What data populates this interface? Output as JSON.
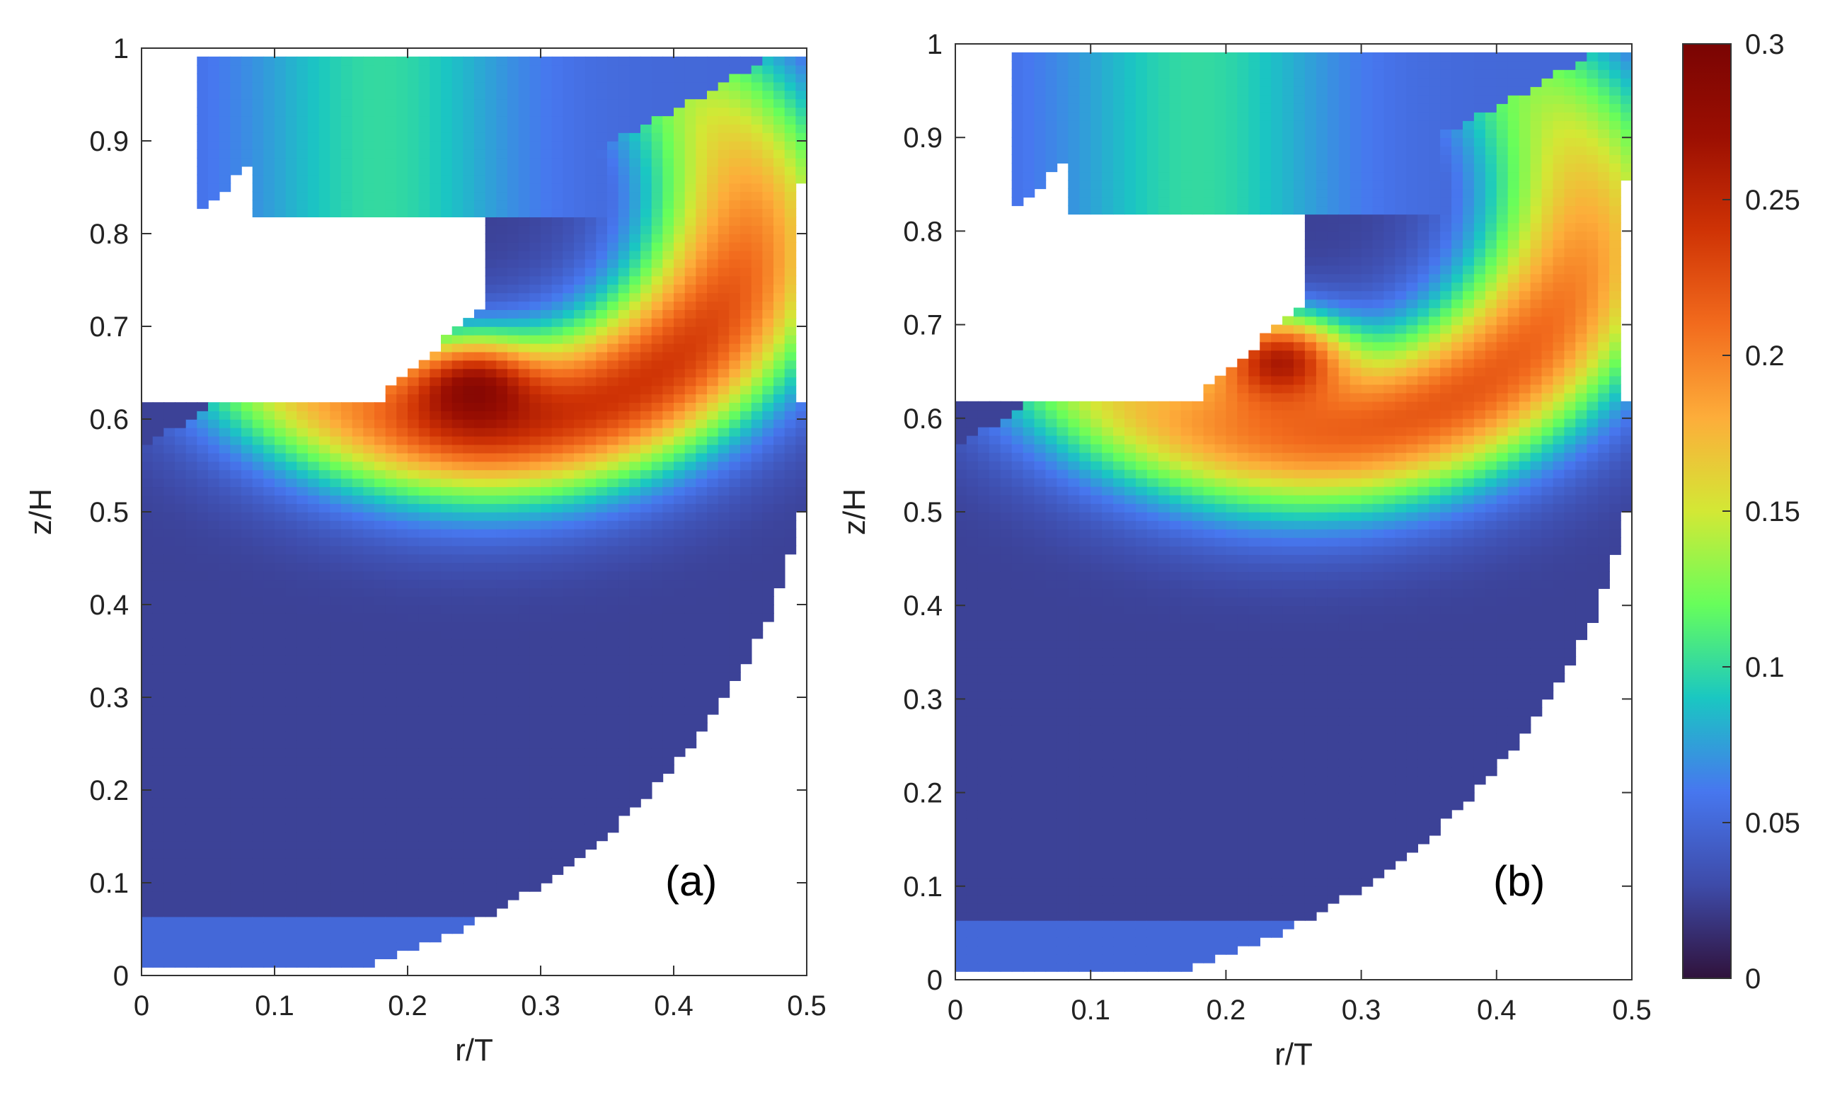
{
  "chart_data": [
    {
      "type": "heatmap",
      "panel_label": "(a)",
      "xlabel": "r/T",
      "ylabel": "z/H",
      "xlim": [
        0,
        0.5
      ],
      "ylim": [
        0,
        1
      ],
      "x_ticks": [
        "0",
        "0.1",
        "0.2",
        "0.3",
        "0.4",
        "0.5"
      ],
      "y_ticks": [
        "0",
        "0.1",
        "0.2",
        "0.3",
        "0.4",
        "0.5",
        "0.6",
        "0.7",
        "0.8",
        "0.9",
        "1"
      ],
      "hotspot": {
        "r": 0.25,
        "z": 0.63,
        "value": 0.3
      },
      "jet_band": {
        "center": [
          0.25,
          0.82
        ],
        "radius": 0.205,
        "peak_value": 0.24
      },
      "background_value": 0.025
    },
    {
      "type": "heatmap",
      "panel_label": "(b)",
      "xlabel": "r/T",
      "ylabel": "z/H",
      "xlim": [
        0,
        0.5
      ],
      "ylim": [
        0,
        1
      ],
      "x_ticks": [
        "0",
        "0.1",
        "0.2",
        "0.3",
        "0.4",
        "0.5"
      ],
      "y_ticks": [
        "0",
        "0.1",
        "0.2",
        "0.3",
        "0.4",
        "0.5",
        "0.6",
        "0.7",
        "0.8",
        "0.9",
        "1"
      ],
      "hotspot": {
        "r": 0.24,
        "z": 0.66,
        "value": 0.28
      },
      "jet_band": {
        "center": [
          0.25,
          0.82
        ],
        "radius": 0.215,
        "peak_value": 0.22
      },
      "background_value": 0.025
    }
  ],
  "colorbar": {
    "range": [
      0,
      0.3
    ],
    "ticks": [
      "0",
      "0.05",
      "0.1",
      "0.15",
      "0.2",
      "0.25",
      "0.3"
    ],
    "colormap": "turbo",
    "stops": [
      "#30123b",
      "#3e4ba9",
      "#4777ef",
      "#1ac7c2",
      "#67fe5b",
      "#d3e835",
      "#fdad3a",
      "#f26b1d",
      "#cf3305",
      "#9c0f02",
      "#7a0403"
    ]
  }
}
